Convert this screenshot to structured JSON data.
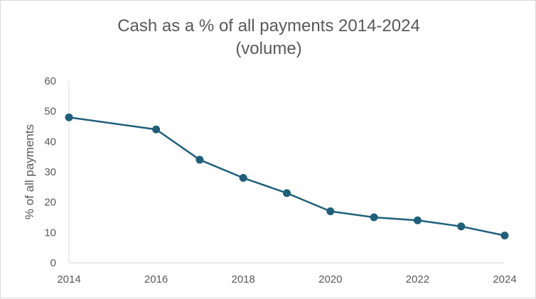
{
  "chart_data": {
    "type": "line",
    "title_line1": "Cash as a % of all payments 2014-2024",
    "title_line2": "(volume)",
    "xlabel": "",
    "ylabel": "% of all payments",
    "x": [
      2014,
      2016,
      2017,
      2018,
      2019,
      2020,
      2021,
      2022,
      2023,
      2024
    ],
    "series": [
      {
        "values": [
          48,
          44,
          34,
          28,
          23,
          17,
          15,
          14,
          12,
          9
        ]
      }
    ],
    "xlim": [
      2014,
      2024
    ],
    "ylim": [
      0,
      60
    ],
    "x_ticks": [
      "2014",
      "2016",
      "2018",
      "2020",
      "2022",
      "2024"
    ],
    "y_ticks": [
      "0",
      "10",
      "20",
      "30",
      "40",
      "50",
      "60"
    ],
    "grid": false,
    "legend": "none",
    "line_color": "#1f5f7a",
    "axis_color": "#d9d9d9"
  }
}
